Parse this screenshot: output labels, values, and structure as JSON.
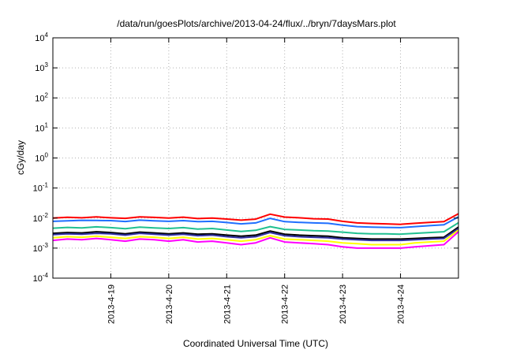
{
  "chart_data": {
    "type": "line",
    "title": "/data/run/goesPlots/archive/2013-04-24/flux/../bryn/7daysMars.plot",
    "xlabel": "Coordinated Universal Time (UTC)",
    "ylabel": "cGy/day",
    "yscale": "log",
    "ylim": [
      0.0001,
      10000
    ],
    "y_ticks": [
      {
        "value": 0.0001,
        "base": "10",
        "exp": "-4"
      },
      {
        "value": 0.001,
        "base": "10",
        "exp": "-3"
      },
      {
        "value": 0.01,
        "base": "10",
        "exp": "-2"
      },
      {
        "value": 0.1,
        "base": "10",
        "exp": "-1"
      },
      {
        "value": 1,
        "base": "10",
        "exp": "0"
      },
      {
        "value": 10,
        "base": "10",
        "exp": "1"
      },
      {
        "value": 100,
        "base": "10",
        "exp": "2"
      },
      {
        "value": 1000,
        "base": "10",
        "exp": "3"
      },
      {
        "value": 10000,
        "base": "10",
        "exp": "4"
      }
    ],
    "xlim": [
      "2013-04-18T00:00",
      "2013-04-25T00:00"
    ],
    "x_ticks": [
      {
        "value": "2013-04-19T00:00",
        "label": "2013-4-19"
      },
      {
        "value": "2013-04-20T00:00",
        "label": "2013-4-20"
      },
      {
        "value": "2013-04-21T00:00",
        "label": "2013-4-21"
      },
      {
        "value": "2013-04-22T00:00",
        "label": "2013-4-22"
      },
      {
        "value": "2013-04-23T00:00",
        "label": "2013-4-23"
      },
      {
        "value": "2013-04-24T00:00",
        "label": "2013-4-24"
      }
    ],
    "grid": true,
    "legend": "none",
    "x": [
      "2013-04-18T00:00",
      "2013-04-18T06:00",
      "2013-04-18T12:00",
      "2013-04-18T18:00",
      "2013-04-19T00:00",
      "2013-04-19T06:00",
      "2013-04-19T12:00",
      "2013-04-19T18:00",
      "2013-04-20T00:00",
      "2013-04-20T06:00",
      "2013-04-20T12:00",
      "2013-04-20T18:00",
      "2013-04-21T00:00",
      "2013-04-21T06:00",
      "2013-04-21T12:00",
      "2013-04-21T18:00",
      "2013-04-22T00:00",
      "2013-04-22T06:00",
      "2013-04-22T12:00",
      "2013-04-22T18:00",
      "2013-04-23T00:00",
      "2013-04-23T06:00",
      "2013-04-23T12:00",
      "2013-04-23T18:00",
      "2013-04-24T00:00",
      "2013-04-24T06:00",
      "2013-04-24T12:00",
      "2013-04-24T18:00",
      "2013-04-25T00:00"
    ],
    "series": [
      {
        "color": "#ff0000",
        "values": [
          0.01,
          0.0106,
          0.0102,
          0.0109,
          0.0102,
          0.0098,
          0.011,
          0.0105,
          0.01,
          0.0107,
          0.0096,
          0.01,
          0.0093,
          0.0085,
          0.0092,
          0.0135,
          0.0108,
          0.0102,
          0.0095,
          0.0093,
          0.0078,
          0.0069,
          0.0066,
          0.0064,
          0.0062,
          0.0067,
          0.0072,
          0.0076,
          0.014
        ]
      },
      {
        "color": "#1f6fff",
        "values": [
          0.0078,
          0.0081,
          0.0084,
          0.0083,
          0.0082,
          0.0077,
          0.0085,
          0.0081,
          0.0078,
          0.0082,
          0.0076,
          0.0078,
          0.0071,
          0.0064,
          0.0069,
          0.0098,
          0.0076,
          0.0072,
          0.0069,
          0.0067,
          0.0058,
          0.0052,
          0.005,
          0.0049,
          0.0048,
          0.0052,
          0.0056,
          0.006,
          0.011
        ]
      },
      {
        "color": "#20c090",
        "values": [
          0.0046,
          0.0049,
          0.0047,
          0.0051,
          0.0048,
          0.0044,
          0.005,
          0.0047,
          0.0045,
          0.0048,
          0.0043,
          0.0045,
          0.004,
          0.0036,
          0.0039,
          0.0052,
          0.0042,
          0.004,
          0.0038,
          0.0037,
          0.0034,
          0.0031,
          0.003,
          0.003,
          0.0029,
          0.0031,
          0.0033,
          0.0035,
          0.007
        ]
      },
      {
        "color": "#000000",
        "values": [
          0.0031,
          0.0033,
          0.0032,
          0.0035,
          0.0033,
          0.003,
          0.0034,
          0.0032,
          0.003,
          0.0032,
          0.0029,
          0.003,
          0.0027,
          0.0025,
          0.0027,
          0.0037,
          0.0029,
          0.0027,
          0.0026,
          0.0025,
          0.0022,
          0.0021,
          0.002,
          0.002,
          0.002,
          0.0021,
          0.0022,
          0.0023,
          0.005
        ]
      },
      {
        "color": "#3030a0",
        "values": [
          0.0028,
          0.003,
          0.0029,
          0.0031,
          0.003,
          0.0027,
          0.0031,
          0.0029,
          0.0027,
          0.0029,
          0.0026,
          0.0027,
          0.0024,
          0.0022,
          0.0024,
          0.0033,
          0.0026,
          0.0024,
          0.0023,
          0.0022,
          0.002,
          0.0019,
          0.0018,
          0.0018,
          0.0018,
          0.0019,
          0.002,
          0.0021,
          0.0045
        ]
      },
      {
        "color": "#ffff00",
        "values": [
          0.0022,
          0.0024,
          0.0023,
          0.0025,
          0.0023,
          0.0021,
          0.0024,
          0.0023,
          0.0021,
          0.0023,
          0.002,
          0.0021,
          0.0019,
          0.0017,
          0.0019,
          0.0026,
          0.002,
          0.0019,
          0.0018,
          0.0017,
          0.0015,
          0.0014,
          0.0013,
          0.0013,
          0.0013,
          0.0015,
          0.0016,
          0.0017,
          0.004
        ]
      },
      {
        "color": "#ff00ff",
        "values": [
          0.0018,
          0.002,
          0.0019,
          0.0021,
          0.0019,
          0.0017,
          0.002,
          0.0019,
          0.0017,
          0.0019,
          0.0016,
          0.0017,
          0.0015,
          0.0013,
          0.0015,
          0.0022,
          0.0016,
          0.0015,
          0.0014,
          0.0013,
          0.0011,
          0.001,
          0.001,
          0.001,
          0.001,
          0.0011,
          0.0012,
          0.0013,
          0.0035
        ]
      }
    ]
  }
}
